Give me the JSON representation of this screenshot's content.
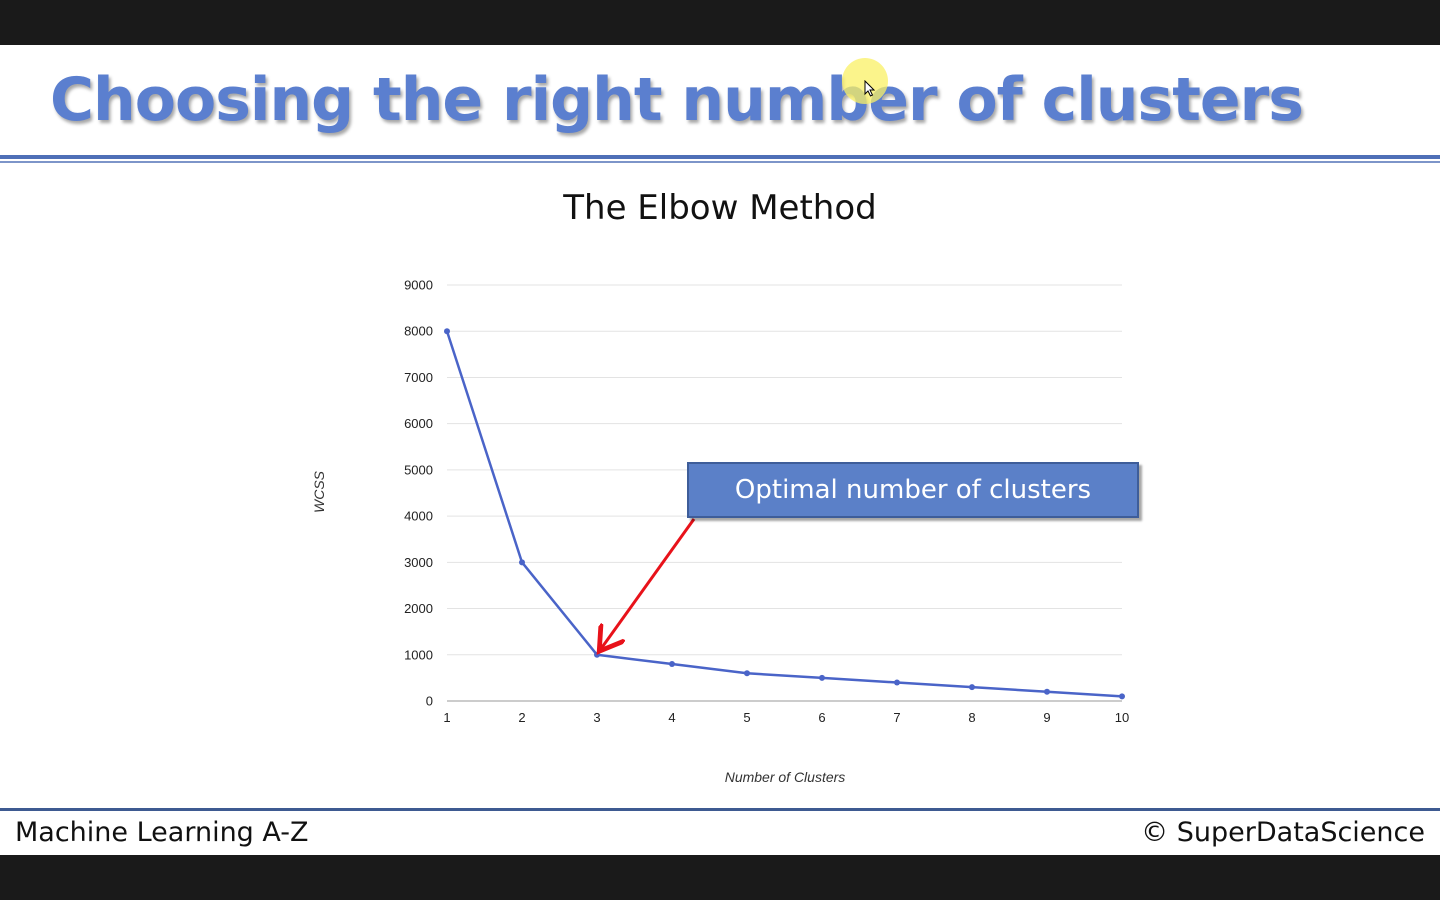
{
  "slide": {
    "title": "Choosing the right number of clusters",
    "footer_left": "Machine Learning A-Z",
    "footer_right": "© SuperDataScience"
  },
  "annotation": {
    "label": "Optimal number of clusters",
    "target_k": 3
  },
  "colors": {
    "title": "#5b7fcf",
    "line": "#4a64c8",
    "arrow": "#e8121a",
    "callout": "#5b80c8",
    "rule": "#4f6fb7"
  },
  "chart_data": {
    "type": "line",
    "title": "The Elbow Method",
    "xlabel": "Number of Clusters",
    "ylabel": "WCSS",
    "x": [
      1,
      2,
      3,
      4,
      5,
      6,
      7,
      8,
      9,
      10
    ],
    "series": [
      {
        "values": [
          8000,
          3000,
          1000,
          800,
          600,
          500,
          400,
          300,
          200,
          100
        ]
      }
    ],
    "ylim": [
      0,
      9000
    ],
    "xlim": [
      1,
      10
    ],
    "yticks": [
      "0",
      "1000",
      "2000",
      "3000",
      "4000",
      "5000",
      "6000",
      "7000",
      "8000",
      "9000"
    ],
    "xticks": [
      "1",
      "2",
      "3",
      "4",
      "5",
      "6",
      "7",
      "8",
      "9",
      "10"
    ],
    "grid": true
  }
}
